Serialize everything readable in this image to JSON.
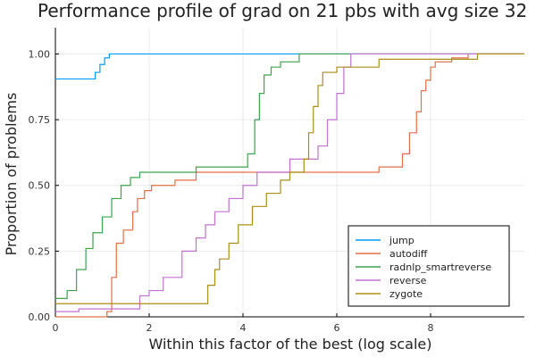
{
  "chart_data": {
    "type": "line",
    "title": "Performance profile of grad on 21 pbs with avg size 32",
    "xlabel": "Within this factor of the best (log scale)",
    "ylabel": "Proportion of problems",
    "xlim": [
      0,
      10
    ],
    "ylim": [
      0,
      1.1
    ],
    "x_ticks": [
      0,
      2,
      4,
      6,
      8
    ],
    "y_ticks": [
      0.0,
      0.25,
      0.5,
      0.75,
      1.0
    ],
    "x_tick_labels": [
      "0",
      "2",
      "4",
      "6",
      "8"
    ],
    "y_tick_labels": [
      "0.00",
      "0.25",
      "0.50",
      "0.75",
      "1.00"
    ],
    "grid": true,
    "legend_position": "bottom-right",
    "series": [
      {
        "name": "jump",
        "color": "#009AFA",
        "points": [
          [
            0,
            0.905
          ],
          [
            0.85,
            0.905
          ],
          [
            0.85,
            0.93
          ],
          [
            0.95,
            0.93
          ],
          [
            0.95,
            0.96
          ],
          [
            1.05,
            0.96
          ],
          [
            1.05,
            0.985
          ],
          [
            1.15,
            0.985
          ],
          [
            1.15,
            1.0
          ],
          [
            10,
            1.0
          ]
        ]
      },
      {
        "name": "autodiff",
        "color": "#E26F46",
        "points": [
          [
            0,
            0.0
          ],
          [
            1.1,
            0.0
          ],
          [
            1.1,
            0.02
          ],
          [
            1.2,
            0.02
          ],
          [
            1.2,
            0.15
          ],
          [
            1.3,
            0.15
          ],
          [
            1.3,
            0.28
          ],
          [
            1.45,
            0.28
          ],
          [
            1.45,
            0.33
          ],
          [
            1.65,
            0.33
          ],
          [
            1.65,
            0.4
          ],
          [
            1.75,
            0.4
          ],
          [
            1.75,
            0.45
          ],
          [
            1.9,
            0.45
          ],
          [
            1.9,
            0.48
          ],
          [
            2.05,
            0.48
          ],
          [
            2.05,
            0.5
          ],
          [
            2.55,
            0.5
          ],
          [
            2.55,
            0.52
          ],
          [
            3.0,
            0.52
          ],
          [
            3.0,
            0.55
          ],
          [
            6.9,
            0.55
          ],
          [
            6.9,
            0.57
          ],
          [
            7.4,
            0.57
          ],
          [
            7.4,
            0.62
          ],
          [
            7.55,
            0.62
          ],
          [
            7.55,
            0.7
          ],
          [
            7.7,
            0.7
          ],
          [
            7.7,
            0.78
          ],
          [
            7.8,
            0.78
          ],
          [
            7.8,
            0.86
          ],
          [
            7.9,
            0.86
          ],
          [
            7.9,
            0.9
          ],
          [
            8.0,
            0.9
          ],
          [
            8.0,
            0.95
          ],
          [
            8.1,
            0.95
          ],
          [
            8.1,
            0.97
          ],
          [
            8.45,
            0.97
          ],
          [
            8.45,
            0.985
          ],
          [
            8.8,
            0.985
          ],
          [
            8.8,
            1.0
          ],
          [
            10,
            1.0
          ]
        ]
      },
      {
        "name": "radnlp_smartreverse",
        "color": "#3DA44D",
        "points": [
          [
            0,
            0.07
          ],
          [
            0.25,
            0.07
          ],
          [
            0.25,
            0.1
          ],
          [
            0.45,
            0.1
          ],
          [
            0.45,
            0.18
          ],
          [
            0.65,
            0.18
          ],
          [
            0.65,
            0.26
          ],
          [
            0.8,
            0.26
          ],
          [
            0.8,
            0.32
          ],
          [
            1.0,
            0.32
          ],
          [
            1.0,
            0.38
          ],
          [
            1.2,
            0.38
          ],
          [
            1.2,
            0.45
          ],
          [
            1.4,
            0.45
          ],
          [
            1.4,
            0.5
          ],
          [
            1.6,
            0.5
          ],
          [
            1.6,
            0.53
          ],
          [
            1.8,
            0.53
          ],
          [
            1.8,
            0.55
          ],
          [
            3.0,
            0.55
          ],
          [
            3.0,
            0.57
          ],
          [
            4.1,
            0.57
          ],
          [
            4.1,
            0.62
          ],
          [
            4.25,
            0.62
          ],
          [
            4.25,
            0.75
          ],
          [
            4.35,
            0.75
          ],
          [
            4.35,
            0.85
          ],
          [
            4.45,
            0.85
          ],
          [
            4.45,
            0.92
          ],
          [
            4.6,
            0.92
          ],
          [
            4.6,
            0.95
          ],
          [
            4.8,
            0.95
          ],
          [
            4.8,
            0.97
          ],
          [
            5.2,
            0.97
          ],
          [
            5.2,
            1.0
          ],
          [
            10,
            1.0
          ]
        ]
      },
      {
        "name": "reverse",
        "color": "#C271D2",
        "points": [
          [
            0,
            0.02
          ],
          [
            0.5,
            0.02
          ],
          [
            0.5,
            0.03
          ],
          [
            1.8,
            0.03
          ],
          [
            1.8,
            0.08
          ],
          [
            2.0,
            0.08
          ],
          [
            2.0,
            0.1
          ],
          [
            2.3,
            0.1
          ],
          [
            2.3,
            0.15
          ],
          [
            2.7,
            0.15
          ],
          [
            2.7,
            0.25
          ],
          [
            3.0,
            0.25
          ],
          [
            3.0,
            0.3
          ],
          [
            3.2,
            0.3
          ],
          [
            3.2,
            0.35
          ],
          [
            3.4,
            0.35
          ],
          [
            3.4,
            0.4
          ],
          [
            3.7,
            0.4
          ],
          [
            3.7,
            0.45
          ],
          [
            4.0,
            0.45
          ],
          [
            4.0,
            0.5
          ],
          [
            4.3,
            0.5
          ],
          [
            4.3,
            0.55
          ],
          [
            5.0,
            0.55
          ],
          [
            5.0,
            0.6
          ],
          [
            5.6,
            0.6
          ],
          [
            5.6,
            0.65
          ],
          [
            5.8,
            0.65
          ],
          [
            5.8,
            0.75
          ],
          [
            6.0,
            0.75
          ],
          [
            6.0,
            0.85
          ],
          [
            6.15,
            0.85
          ],
          [
            6.15,
            0.95
          ],
          [
            6.3,
            0.95
          ],
          [
            6.3,
            1.0
          ],
          [
            10,
            1.0
          ]
        ]
      },
      {
        "name": "zygote",
        "color": "#AC8D18",
        "points": [
          [
            0,
            0.05
          ],
          [
            3.25,
            0.05
          ],
          [
            3.25,
            0.12
          ],
          [
            3.4,
            0.12
          ],
          [
            3.4,
            0.18
          ],
          [
            3.5,
            0.18
          ],
          [
            3.5,
            0.22
          ],
          [
            3.7,
            0.22
          ],
          [
            3.7,
            0.28
          ],
          [
            3.9,
            0.28
          ],
          [
            3.9,
            0.35
          ],
          [
            4.2,
            0.35
          ],
          [
            4.2,
            0.42
          ],
          [
            4.5,
            0.42
          ],
          [
            4.5,
            0.47
          ],
          [
            4.8,
            0.47
          ],
          [
            4.8,
            0.52
          ],
          [
            5.0,
            0.52
          ],
          [
            5.0,
            0.55
          ],
          [
            5.3,
            0.55
          ],
          [
            5.3,
            0.6
          ],
          [
            5.4,
            0.6
          ],
          [
            5.4,
            0.7
          ],
          [
            5.5,
            0.7
          ],
          [
            5.5,
            0.8
          ],
          [
            5.6,
            0.8
          ],
          [
            5.6,
            0.88
          ],
          [
            5.7,
            0.88
          ],
          [
            5.7,
            0.93
          ],
          [
            6.0,
            0.93
          ],
          [
            6.0,
            0.95
          ],
          [
            6.9,
            0.95
          ],
          [
            6.9,
            0.98
          ],
          [
            9.0,
            0.98
          ],
          [
            9.0,
            1.0
          ],
          [
            10,
            1.0
          ]
        ]
      }
    ]
  }
}
